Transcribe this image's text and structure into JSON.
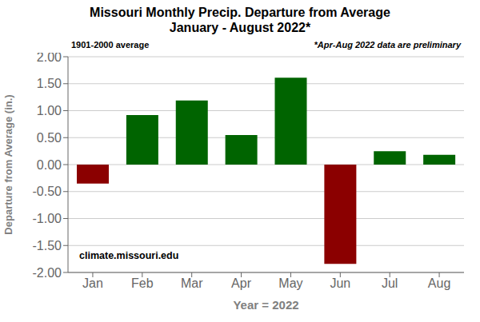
{
  "chart_data": {
    "type": "bar",
    "title": "Missouri Monthly Precip. Departure from Average",
    "subtitle": "January - August 2022*",
    "categories": [
      "Jan",
      "Feb",
      "Mar",
      "Apr",
      "May",
      "Jun",
      "Jul",
      "Aug"
    ],
    "values": [
      -0.35,
      0.92,
      1.19,
      0.55,
      1.61,
      -1.84,
      0.25,
      0.18
    ],
    "colors": [
      "#8B0000",
      "#006400",
      "#006400",
      "#006400",
      "#006400",
      "#8B0000",
      "#006400",
      "#006400"
    ],
    "x_label": "Year = 2022",
    "y_label": "Departure from Average (in.)",
    "ylim": [
      -2.0,
      2.0
    ],
    "yticks": [
      {
        "value": -2.0,
        "label": "-2.00"
      },
      {
        "value": -1.5,
        "label": "-1.50"
      },
      {
        "value": -1.0,
        "label": "-1.00"
      },
      {
        "value": -0.5,
        "label": "-0.50"
      },
      {
        "value": 0.0,
        "label": "0.00"
      },
      {
        "value": 0.5,
        "label": "0.50"
      },
      {
        "value": 1.0,
        "label": "1.00"
      },
      {
        "value": 1.5,
        "label": "1.50"
      },
      {
        "value": 2.0,
        "label": "2.00"
      }
    ],
    "annotations": [
      "1901-2000 average",
      "*Apr-Aug 2022 data are preliminary",
      "climate.missouri.edu"
    ],
    "grid": true
  }
}
